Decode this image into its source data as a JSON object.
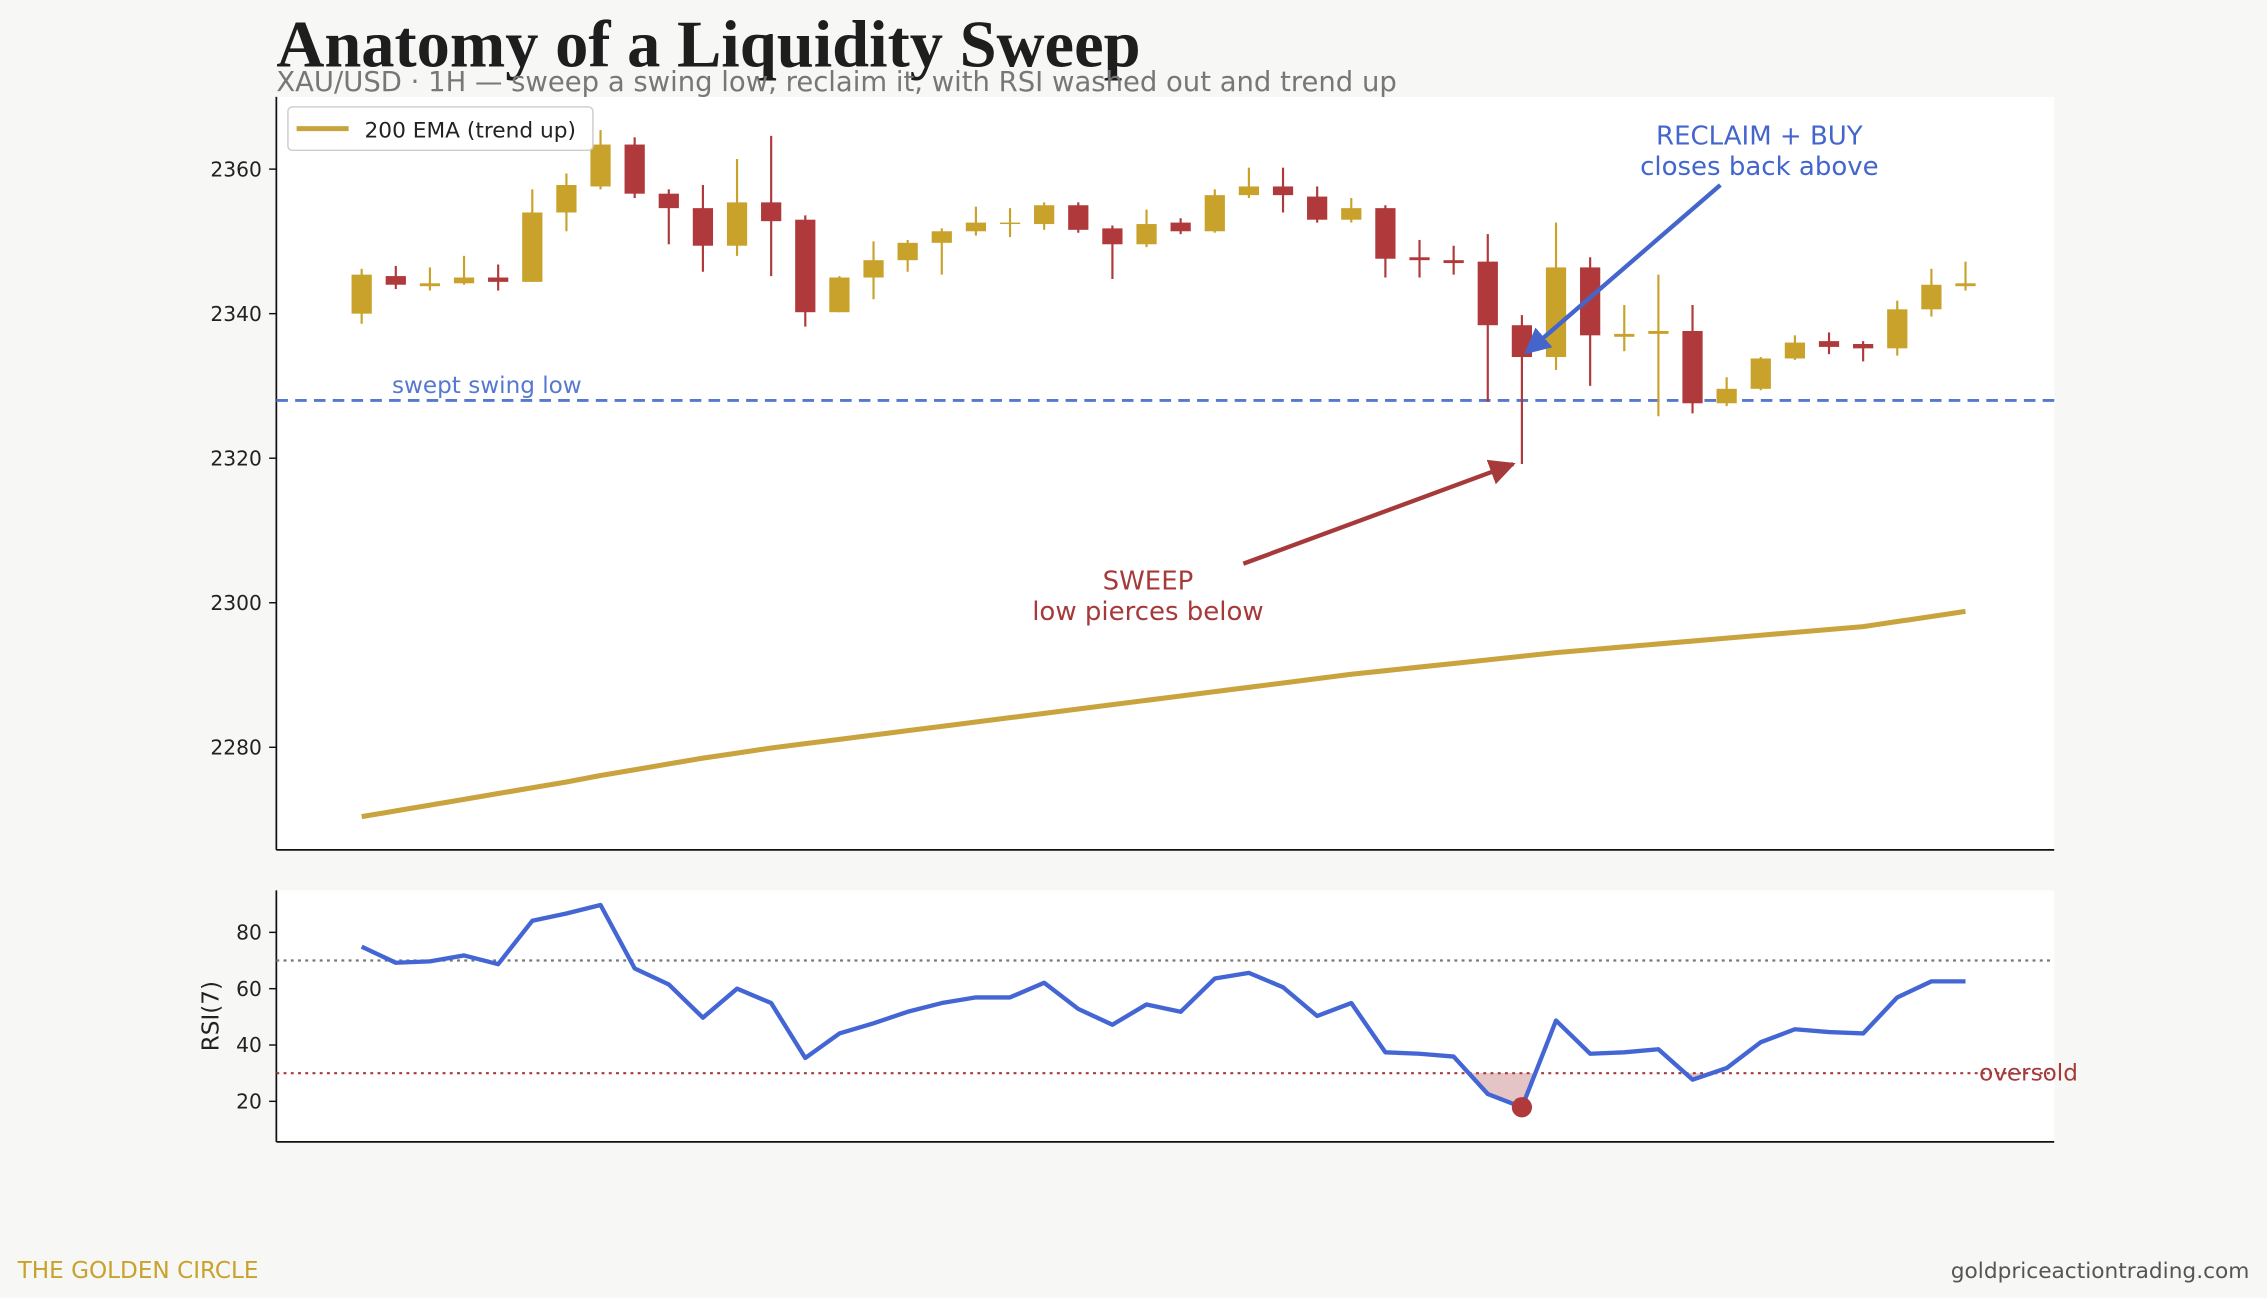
{
  "chart_data": [
    {
      "type": "candlestick",
      "title": "Anatomy of a Liquidity Sweep",
      "subtitle": "XAU/USD · 1H — sweep a swing low, reclaim it, with RSI washed out and trend up",
      "up_color": "#c9a22c",
      "down_color": "#b0393b",
      "open": [
        2340,
        2345.2,
        2343.8,
        2344.2,
        2345,
        2344.4,
        2354,
        2357.6,
        2363.4,
        2356.6,
        2354.6,
        2349.4,
        2355.4,
        2353,
        2340.2,
        2345,
        2347.4,
        2349.8,
        2351.4,
        2352.4,
        2352.4,
        2355,
        2351.8,
        2349.6,
        2352.6,
        2351.4,
        2356.4,
        2357.6,
        2356.2,
        2353,
        2354.6,
        2347.8,
        2347.4,
        2347.2,
        2338.4,
        2334,
        2346.4,
        2336.8,
        2337.2,
        2337.6,
        2327.6,
        2329.6,
        2333.8,
        2336.2,
        2335.8,
        2335.2,
        2340.6,
        2343.8
      ],
      "high": [
        2346.2,
        2346.6,
        2346.4,
        2348,
        2346.8,
        2357.2,
        2359.4,
        2365.4,
        2364.4,
        2357.2,
        2357.8,
        2361.4,
        2364.6,
        2353.6,
        2345.2,
        2350,
        2350.2,
        2351.8,
        2354.8,
        2354.6,
        2355.4,
        2355.4,
        2352.2,
        2354.4,
        2353.2,
        2357.2,
        2360.2,
        2360.2,
        2357.6,
        2356,
        2355,
        2350.2,
        2349.4,
        2351,
        2339.8,
        2352.6,
        2347.8,
        2341.2,
        2345.4,
        2341.2,
        2331.2,
        2334,
        2337,
        2337.4,
        2336.2,
        2341.8,
        2346.2,
        2347.2
      ],
      "low": [
        2338.6,
        2343.4,
        2343.2,
        2344,
        2343.2,
        2344.4,
        2351.4,
        2357.2,
        2356,
        2349.6,
        2345.8,
        2348,
        2345.2,
        2338.2,
        2340.2,
        2342,
        2345.8,
        2345.4,
        2350.8,
        2350.6,
        2351.6,
        2351.2,
        2344.8,
        2349.2,
        2351,
        2351.2,
        2356,
        2354,
        2352.6,
        2352.6,
        2345,
        2345,
        2345.4,
        2327.8,
        2319.2,
        2332.2,
        2330,
        2334.8,
        2325.8,
        2326.2,
        2327.2,
        2329.4,
        2333.6,
        2334.4,
        2333.4,
        2334.2,
        2339.6,
        2343.2
      ],
      "close": [
        2345.4,
        2344,
        2344.2,
        2345,
        2344.4,
        2354,
        2357.8,
        2363.4,
        2356.6,
        2354.6,
        2349.4,
        2355.4,
        2352.8,
        2340.2,
        2345,
        2347.4,
        2349.8,
        2351.4,
        2352.6,
        2352.6,
        2355,
        2351.6,
        2349.6,
        2352.4,
        2351.4,
        2356.4,
        2357.6,
        2356.4,
        2353,
        2354.6,
        2347.6,
        2347.4,
        2347,
        2338.4,
        2334,
        2346.4,
        2337,
        2337.2,
        2337.6,
        2327.6,
        2329.6,
        2333.8,
        2336,
        2335.4,
        2335.2,
        2340.6,
        2344,
        2344.2
      ],
      "series": [
        {
          "name": "200 EMA (trend up)",
          "color": "#c9a43e",
          "values": [
            2270.4,
            2271.2,
            2272,
            2272.8,
            2273.6,
            2274.4,
            2275.2,
            2276.1,
            2276.9,
            2277.7,
            2278.5,
            2279.2,
            2279.9,
            2280.5,
            2281.1,
            2281.7,
            2282.3,
            2282.9,
            2283.5,
            2284.1,
            2284.7,
            2285.3,
            2285.9,
            2286.5,
            2287.1,
            2287.7,
            2288.3,
            2288.9,
            2289.5,
            2290.1,
            2290.6,
            2291.1,
            2291.6,
            2292.1,
            2292.6,
            2293.1,
            2293.5,
            2293.9,
            2294.3,
            2294.7,
            2295.1,
            2295.5,
            2295.9,
            2296.3,
            2296.7,
            2297.4,
            2298.1,
            2298.8
          ]
        }
      ],
      "hline": {
        "value": 2328,
        "label": "swept swing low",
        "color": "#5578d0"
      },
      "annotations": [
        {
          "text": [
            "RECLAIM + BUY",
            "closes back above"
          ],
          "color": "#4466cc",
          "at": 34,
          "points_to": "close"
        },
        {
          "text": [
            "SWEEP",
            "low pierces below"
          ],
          "color": "#a63a3a",
          "at": 34,
          "points_to": "low"
        }
      ],
      "ylim": [
        2265.8,
        2370
      ],
      "yticks": [
        2280,
        2300,
        2320,
        2340,
        2360
      ]
    },
    {
      "type": "line",
      "ylabel": "RSI(7)",
      "color": "#4466d4",
      "values": [
        74.9,
        69.2,
        69.7,
        71.8,
        68.7,
        84.1,
        86.7,
        89.7,
        67.2,
        61.5,
        49.7,
        60,
        54.9,
        35.4,
        44.1,
        47.7,
        51.8,
        54.9,
        56.9,
        56.9,
        62.1,
        52.8,
        47.2,
        54.4,
        51.8,
        63.6,
        65.6,
        60.5,
        50.3,
        54.9,
        37.4,
        36.9,
        35.9,
        22.6,
        17.9,
        48.7,
        36.9,
        37.4,
        38.5,
        27.7,
        31.8,
        41,
        45.6,
        44.6,
        44.1,
        56.9,
        62.6,
        62.6
      ],
      "levels": [
        {
          "value": 70,
          "color": "#777777"
        },
        {
          "value": 30,
          "label": "oversold",
          "color": "#a63a3a"
        }
      ],
      "highlight": 34,
      "highlight_color": "#b0393b",
      "ylim": [
        5.6,
        94.9
      ],
      "yticks": [
        20,
        40,
        60,
        80
      ]
    }
  ],
  "footer": {
    "brand": "THE GOLDEN CIRCLE",
    "site": "goldpriceactiontrading.com"
  }
}
